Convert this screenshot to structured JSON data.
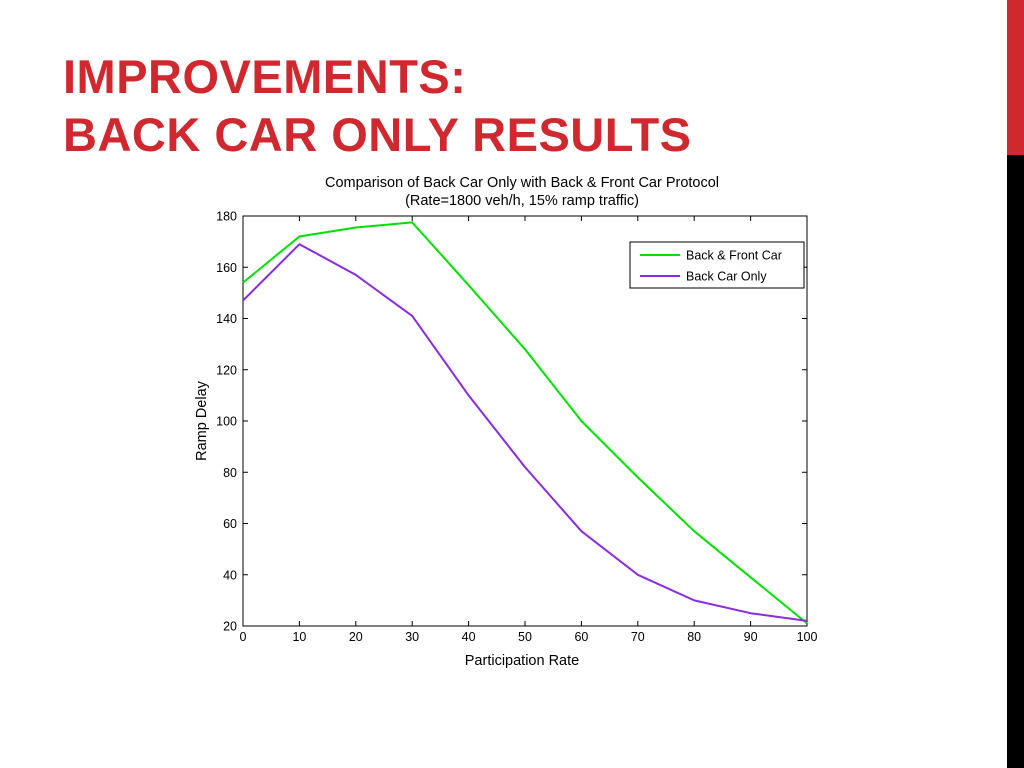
{
  "slide": {
    "title_line1": "IMPROVEMENTS:",
    "title_line2": "BACK CAR ONLY RESULTS"
  },
  "colors": {
    "title": "#d0282e",
    "accent_bar_top": "#d0282e",
    "accent_bar_bottom": "#000000"
  },
  "chart_data": {
    "type": "line",
    "title": "Comparison of Back Car Only with Back & Front Car Protocol",
    "subtitle": "(Rate=1800 veh/h, 15% ramp traffic)",
    "xlabel": "Participation Rate",
    "ylabel": "Ramp Delay",
    "xlim": [
      0,
      100
    ],
    "ylim": [
      20,
      180
    ],
    "xticks": [
      0,
      10,
      20,
      30,
      40,
      50,
      60,
      70,
      80,
      90,
      100
    ],
    "yticks": [
      20,
      40,
      60,
      80,
      100,
      120,
      140,
      160,
      180
    ],
    "grid": false,
    "legend_position": "top-right",
    "x": [
      0,
      10,
      20,
      30,
      40,
      50,
      60,
      70,
      80,
      90,
      100
    ],
    "series": [
      {
        "name": "Back & Front Car",
        "color": "#00e000",
        "values": [
          154,
          172,
          175.5,
          177.5,
          153,
          128,
          100,
          78,
          57,
          39,
          21
        ]
      },
      {
        "name": "Back Car Only",
        "color": "#8a2be2",
        "values": [
          147,
          169,
          157,
          141,
          110,
          82,
          57,
          40,
          30,
          25,
          22
        ]
      }
    ]
  }
}
